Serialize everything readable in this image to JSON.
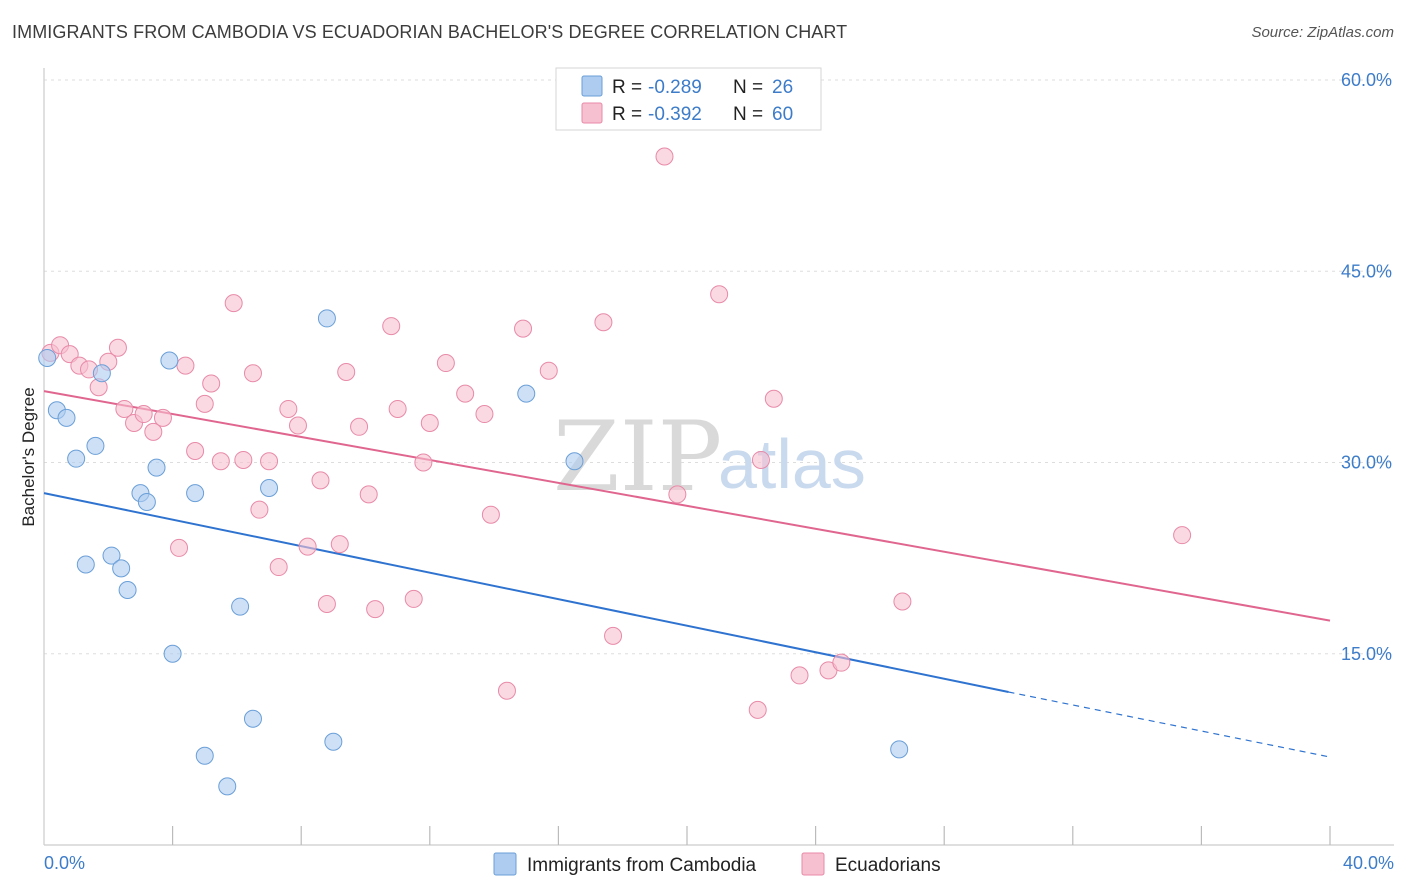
{
  "title": "IMMIGRANTS FROM CAMBODIA VS ECUADORIAN BACHELOR'S DEGREE CORRELATION CHART",
  "source": "Source: ZipAtlas.com",
  "watermark": {
    "zip": "ZIP",
    "atlas": "atlas"
  },
  "legend": {
    "r_label": "R =",
    "n_label": "N =",
    "rows": [
      {
        "r": "-0.289",
        "n": "26",
        "color": "#aecbf0",
        "stroke": "#6a9fd8"
      },
      {
        "r": "-0.392",
        "n": "60",
        "color": "#f7c0d0",
        "stroke": "#e88aa8"
      }
    ]
  },
  "bottom_legend": [
    {
      "label": "Immigrants from Cambodia",
      "color": "#aecbf0",
      "stroke": "#6a9fd8"
    },
    {
      "label": "Ecuadorians",
      "color": "#f7c0d0",
      "stroke": "#e88aa8"
    }
  ],
  "chart_data": {
    "type": "scatter",
    "title": "IMMIGRANTS FROM CAMBODIA VS ECUADORIAN BACHELOR'S DEGREE CORRELATION CHART",
    "xlabel": "",
    "ylabel": "Bachelor's Degree",
    "xlim": [
      0,
      40
    ],
    "ylim": [
      0,
      60
    ],
    "x_tick_labels": [
      "0.0%",
      "40.0%"
    ],
    "y_ticks": [
      15,
      30,
      45,
      60
    ],
    "y_tick_labels": [
      "15.0%",
      "30.0%",
      "45.0%",
      "60.0%"
    ],
    "grid": true,
    "legend_position": "top-center",
    "series": [
      {
        "name": "Immigrants from Cambodia",
        "color": "#6a9fd8",
        "fill": "#aecbf0",
        "trend": {
          "x0": 0,
          "y0": 27.6,
          "x1": 30,
          "y1": 12.0,
          "dashed_to_x": 40,
          "dashed_to_y": 6.9,
          "color": "#2f73d0"
        },
        "points": [
          [
            0.1,
            38.2
          ],
          [
            0.4,
            34.1
          ],
          [
            0.7,
            33.5
          ],
          [
            1.0,
            30.3
          ],
          [
            1.3,
            22.0
          ],
          [
            1.6,
            31.3
          ],
          [
            1.8,
            37.0
          ],
          [
            2.1,
            22.7
          ],
          [
            2.4,
            21.7
          ],
          [
            2.6,
            20.0
          ],
          [
            3.0,
            27.6
          ],
          [
            3.2,
            26.9
          ],
          [
            3.5,
            29.6
          ],
          [
            3.9,
            38.0
          ],
          [
            4.0,
            15.0
          ],
          [
            4.7,
            27.6
          ],
          [
            5.0,
            7.0
          ],
          [
            5.7,
            4.6
          ],
          [
            6.1,
            18.7
          ],
          [
            6.5,
            9.9
          ],
          [
            7.0,
            28.0
          ],
          [
            8.8,
            41.3
          ],
          [
            9.0,
            8.1
          ],
          [
            15.0,
            35.4
          ],
          [
            16.5,
            30.1
          ],
          [
            26.6,
            7.5
          ]
        ]
      },
      {
        "name": "Ecuadorians",
        "color": "#e88aa8",
        "fill": "#f7c0d0",
        "trend": {
          "x0": 0,
          "y0": 35.6,
          "x1": 40,
          "y1": 17.6,
          "color": "#e0668f"
        },
        "points": [
          [
            0.2,
            38.6
          ],
          [
            0.5,
            39.2
          ],
          [
            0.8,
            38.5
          ],
          [
            1.1,
            37.6
          ],
          [
            1.4,
            37.3
          ],
          [
            1.7,
            35.9
          ],
          [
            2.0,
            37.9
          ],
          [
            2.3,
            39.0
          ],
          [
            2.5,
            34.2
          ],
          [
            2.8,
            33.1
          ],
          [
            3.1,
            33.8
          ],
          [
            3.4,
            32.4
          ],
          [
            3.7,
            33.5
          ],
          [
            4.2,
            23.3
          ],
          [
            4.4,
            37.6
          ],
          [
            4.7,
            30.9
          ],
          [
            5.0,
            34.6
          ],
          [
            5.2,
            36.2
          ],
          [
            5.5,
            30.1
          ],
          [
            5.9,
            42.5
          ],
          [
            6.2,
            30.2
          ],
          [
            6.5,
            37.0
          ],
          [
            6.7,
            26.3
          ],
          [
            7.0,
            30.1
          ],
          [
            7.3,
            21.8
          ],
          [
            7.6,
            34.2
          ],
          [
            7.9,
            32.9
          ],
          [
            8.2,
            23.4
          ],
          [
            8.6,
            28.6
          ],
          [
            8.8,
            18.9
          ],
          [
            9.2,
            23.6
          ],
          [
            9.4,
            37.1
          ],
          [
            9.8,
            32.8
          ],
          [
            10.1,
            27.5
          ],
          [
            10.3,
            18.5
          ],
          [
            10.8,
            40.7
          ],
          [
            11.0,
            34.2
          ],
          [
            11.5,
            19.3
          ],
          [
            11.8,
            30.0
          ],
          [
            12.0,
            33.1
          ],
          [
            12.5,
            37.8
          ],
          [
            13.1,
            35.4
          ],
          [
            13.7,
            33.8
          ],
          [
            13.9,
            25.9
          ],
          [
            14.4,
            12.1
          ],
          [
            14.9,
            40.5
          ],
          [
            15.7,
            37.2
          ],
          [
            17.4,
            41.0
          ],
          [
            17.7,
            16.4
          ],
          [
            19.3,
            54.0
          ],
          [
            19.7,
            27.5
          ],
          [
            21.0,
            43.2
          ],
          [
            22.2,
            10.6
          ],
          [
            22.3,
            30.2
          ],
          [
            22.7,
            35.0
          ],
          [
            23.5,
            13.3
          ],
          [
            24.4,
            13.7
          ],
          [
            24.8,
            14.3
          ],
          [
            26.7,
            19.1
          ],
          [
            35.4,
            24.3
          ]
        ]
      }
    ]
  }
}
